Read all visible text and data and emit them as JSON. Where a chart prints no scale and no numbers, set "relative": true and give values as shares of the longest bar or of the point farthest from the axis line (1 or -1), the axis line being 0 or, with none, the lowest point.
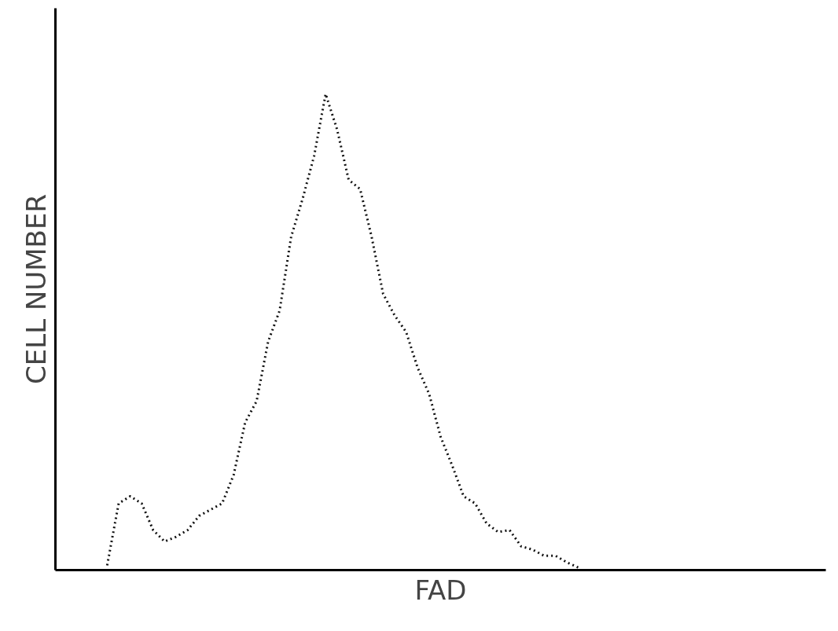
{
  "chart_data": {
    "type": "line",
    "relative": true,
    "xlabel": "FAD",
    "ylabel": "CELL NUMBER",
    "line_style": "dotted",
    "marker": "none",
    "categories": [
      null,
      null,
      null,
      null,
      null,
      null,
      null,
      null,
      null,
      null,
      null,
      null,
      null,
      null,
      null,
      null,
      null,
      null,
      null,
      null,
      null,
      null,
      null,
      null,
      null,
      null,
      null,
      null,
      null,
      null,
      null,
      null,
      null,
      null,
      null,
      null,
      null,
      null,
      null,
      null,
      null,
      null,
      null,
      null,
      null,
      null,
      null,
      null,
      null,
      null,
      null,
      null,
      null,
      null,
      null,
      null,
      null,
      null,
      null,
      null,
      null,
      null,
      null,
      null,
      null,
      null,
      null
    ],
    "series": [
      {
        "color": "#111111",
        "values": [
          null,
          null,
          null,
          null,
          0.01,
          0.14,
          0.155,
          0.14,
          0.084,
          0.06,
          0.07,
          0.084,
          0.114,
          0.127,
          0.14,
          0.2,
          0.31,
          0.355,
          0.48,
          0.545,
          0.7,
          0.78,
          0.87,
          1.0,
          0.925,
          0.82,
          0.8,
          0.7,
          0.58,
          0.535,
          0.5,
          0.425,
          0.37,
          0.28,
          0.22,
          0.155,
          0.14,
          0.098,
          0.08,
          0.084,
          0.05,
          0.043,
          0.03,
          0.03,
          0.016,
          0.005,
          null,
          null,
          null,
          null,
          null,
          null,
          null,
          null,
          null,
          null,
          null,
          null,
          null,
          null,
          null,
          null,
          null,
          null,
          null,
          null,
          null
        ]
      }
    ]
  }
}
